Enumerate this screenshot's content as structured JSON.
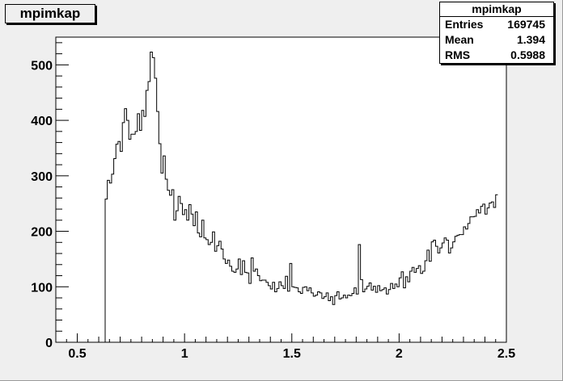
{
  "chart_data": {
    "type": "histogram",
    "title": "mpimkap",
    "xlabel": "",
    "ylabel": "",
    "xlim": [
      0.4,
      2.5
    ],
    "ylim": [
      0,
      550
    ],
    "xticks": [
      0.5,
      1,
      1.5,
      2,
      2.5
    ],
    "xtick_labels": [
      "0.5",
      "1",
      "1.5",
      "2",
      "2.5"
    ],
    "yticks": [
      0,
      100,
      200,
      300,
      400,
      500
    ],
    "ytick_labels": [
      "0",
      "100",
      "200",
      "300",
      "400",
      "500"
    ],
    "bin_start": 0.63,
    "bin_width": 0.01,
    "values": [
      258,
      292,
      287,
      303,
      331,
      357,
      362,
      344,
      396,
      421,
      400,
      366,
      375,
      375,
      380,
      412,
      382,
      418,
      407,
      454,
      470,
      523,
      513,
      476,
      416,
      358,
      305,
      336,
      294,
      274,
      265,
      275,
      220,
      237,
      263,
      250,
      230,
      239,
      220,
      248,
      231,
      210,
      235,
      197,
      190,
      220,
      188,
      185,
      176,
      180,
      199,
      164,
      174,
      182,
      168,
      150,
      142,
      148,
      137,
      128,
      126,
      132,
      150,
      122,
      147,
      126,
      125,
      106,
      152,
      128,
      132,
      120,
      111,
      112,
      112,
      108,
      102,
      96,
      108,
      91,
      97,
      109,
      102,
      97,
      119,
      92,
      142,
      100,
      99,
      98,
      91,
      88,
      99,
      100,
      93,
      98,
      89,
      83,
      85,
      91,
      89,
      79,
      82,
      89,
      75,
      82,
      68,
      84,
      91,
      78,
      80,
      85,
      80,
      85,
      84,
      88,
      98,
      87,
      176,
      113,
      91,
      96,
      101,
      107,
      94,
      101,
      90,
      102,
      93,
      95,
      98,
      87,
      95,
      106,
      97,
      105,
      100,
      116,
      127,
      98,
      118,
      109,
      128,
      135,
      126,
      133,
      138,
      124,
      128,
      147,
      166,
      146,
      181,
      184,
      173,
      161,
      170,
      179,
      188,
      184,
      161,
      170,
      181,
      191,
      193,
      194,
      194,
      208,
      204,
      214,
      226,
      226,
      227,
      239,
      233,
      245,
      249,
      231,
      242,
      251,
      253,
      243,
      266
    ]
  },
  "stats": {
    "title": "mpimkap",
    "entries_label": "Entries",
    "entries_value": "169745",
    "mean_label": "Mean",
    "mean_value": "1.394",
    "rms_label": "RMS",
    "rms_value": "0.5988"
  },
  "colors": {
    "canvas_bg": "#efefef",
    "frame_bg": "#ffffff",
    "line": "#000000"
  }
}
